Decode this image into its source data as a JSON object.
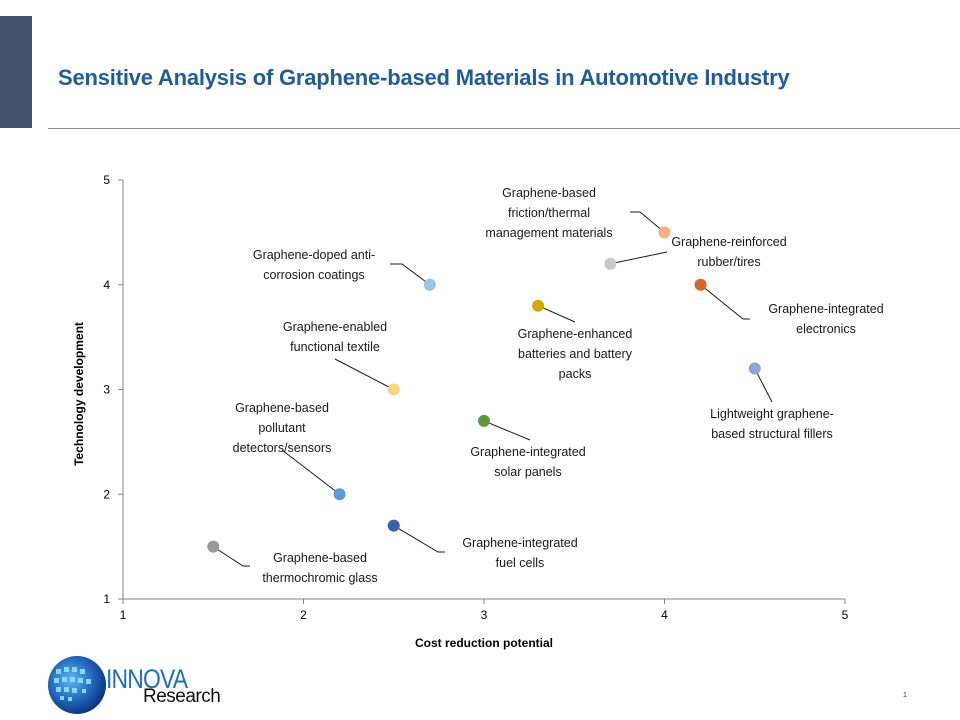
{
  "header": {
    "title": "Sensitive Analysis of Graphene-based Materials in Automotive Industry"
  },
  "chart_data": {
    "type": "scatter",
    "title": "",
    "xlabel": "Cost reduction potential",
    "ylabel": "Technology development",
    "xlim": [
      1,
      5
    ],
    "ylim": [
      1,
      5
    ],
    "xticks": [
      "1",
      "2",
      "3",
      "4",
      "5"
    ],
    "yticks": [
      "1",
      "2",
      "3",
      "4",
      "5"
    ],
    "grid": false,
    "points": [
      {
        "label": [
          "Graphene-doped anti-",
          "corrosion coatings"
        ],
        "x": 2.7,
        "y": 4.0,
        "color": "#9dc3e6"
      },
      {
        "label": [
          "Graphene-based",
          "friction/thermal",
          "management materials"
        ],
        "x": 4.0,
        "y": 4.5,
        "color": "#f4b183"
      },
      {
        "label": [
          "Graphene-reinforced",
          "rubber/tires"
        ],
        "x": 3.7,
        "y": 4.2,
        "color": "#c9c9c9"
      },
      {
        "label": [
          "Graphene-integrated",
          "electronics"
        ],
        "x": 4.2,
        "y": 4.0,
        "color": "#d0692a"
      },
      {
        "label": [
          "Graphene-enabled",
          "functional textile"
        ],
        "x": 2.5,
        "y": 3.0,
        "color": "#ffd37f"
      },
      {
        "label": [
          "Graphene-enhanced",
          "batteries and battery",
          "packs"
        ],
        "x": 3.3,
        "y": 3.8,
        "color": "#d4a806"
      },
      {
        "label": [
          "Lightweight graphene-",
          "based structural fillers"
        ],
        "x": 4.5,
        "y": 3.2,
        "color": "#8fa3d5"
      },
      {
        "label": [
          "Graphene-integrated",
          "solar panels"
        ],
        "x": 3.0,
        "y": 2.7,
        "color": "#5e9a3a"
      },
      {
        "label": [
          "Graphene-based",
          "pollutant",
          "detectors/sensors"
        ],
        "x": 2.2,
        "y": 2.0,
        "color": "#5b9bd5"
      },
      {
        "label": [
          "Graphene-integrated",
          "fuel cells"
        ],
        "x": 2.5,
        "y": 1.7,
        "color": "#3a5eab"
      },
      {
        "label": [
          "Graphene-based",
          "thermochromic  glass"
        ],
        "x": 1.5,
        "y": 1.5,
        "color": "#999999"
      }
    ]
  },
  "footer": {
    "logo_text_1": "INNOVA",
    "logo_text_2": "Research",
    "page_number": "1"
  }
}
